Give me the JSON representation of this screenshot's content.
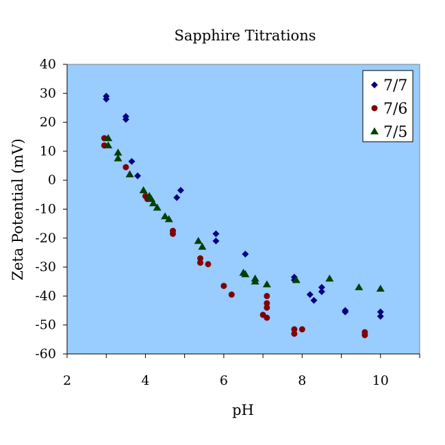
{
  "chart_data": {
    "type": "scatter",
    "title": "Sapphire Titrations",
    "xlabel": "pH",
    "ylabel": "Zeta Potential (mV)",
    "xlim": [
      2,
      11
    ],
    "ylim": [
      -60,
      40
    ],
    "xticks": [
      2,
      4,
      6,
      8,
      10
    ],
    "yticks": [
      40,
      30,
      20,
      10,
      0,
      -10,
      -20,
      -30,
      -40,
      -50,
      -60
    ],
    "grid": false,
    "legend_position": "top-right",
    "plot_background": "#99ccff",
    "series": [
      {
        "name": "7/7",
        "marker": "diamond",
        "color": "#000080",
        "points": [
          [
            3.0,
            29
          ],
          [
            3.0,
            28
          ],
          [
            3.5,
            22
          ],
          [
            3.5,
            21
          ],
          [
            3.65,
            6.5
          ],
          [
            3.8,
            1.5
          ],
          [
            4.8,
            -6
          ],
          [
            4.9,
            -3.5
          ],
          [
            5.8,
            -18.5
          ],
          [
            5.8,
            -21
          ],
          [
            6.55,
            -25.5
          ],
          [
            7.8,
            -33.5
          ],
          [
            7.8,
            -34.5
          ],
          [
            8.2,
            -39.5
          ],
          [
            8.3,
            -41.5
          ],
          [
            8.5,
            -37
          ],
          [
            8.5,
            -38.5
          ],
          [
            9.1,
            -45
          ],
          [
            9.1,
            -45.5
          ],
          [
            10.0,
            -45.5
          ],
          [
            10.0,
            -47
          ]
        ]
      },
      {
        "name": "7/6",
        "marker": "circle",
        "color": "#800000",
        "points": [
          [
            2.95,
            14.5
          ],
          [
            2.95,
            12
          ],
          [
            3.5,
            4.5
          ],
          [
            4.0,
            -5.5
          ],
          [
            4.05,
            -6.5
          ],
          [
            4.7,
            -17.5
          ],
          [
            4.7,
            -18.5
          ],
          [
            5.4,
            -27
          ],
          [
            5.4,
            -28.5
          ],
          [
            5.6,
            -29
          ],
          [
            6.0,
            -36.5
          ],
          [
            6.2,
            -39.5
          ],
          [
            7.0,
            -46.5
          ],
          [
            7.1,
            -40
          ],
          [
            7.1,
            -42.5
          ],
          [
            7.1,
            -44
          ],
          [
            7.1,
            -47.5
          ],
          [
            7.8,
            -51.5
          ],
          [
            7.8,
            -53
          ],
          [
            8.0,
            -51.5
          ],
          [
            9.6,
            -52.5
          ],
          [
            9.6,
            -53.5
          ]
        ]
      },
      {
        "name": "7/5",
        "marker": "triangle",
        "color": "#004000",
        "points": [
          [
            3.05,
            14.5
          ],
          [
            3.05,
            12
          ],
          [
            3.3,
            9.5
          ],
          [
            3.3,
            7.5
          ],
          [
            3.6,
            2
          ],
          [
            3.95,
            -3.5
          ],
          [
            4.1,
            -5.5
          ],
          [
            4.15,
            -6.5
          ],
          [
            4.2,
            -8
          ],
          [
            4.3,
            -9.5
          ],
          [
            4.5,
            -12.5
          ],
          [
            4.6,
            -13.5
          ],
          [
            5.35,
            -21
          ],
          [
            5.45,
            -23
          ],
          [
            6.5,
            -32
          ],
          [
            6.55,
            -32.5
          ],
          [
            6.8,
            -34
          ],
          [
            6.8,
            -35
          ],
          [
            7.1,
            -36
          ],
          [
            7.85,
            -34.5
          ],
          [
            8.7,
            -34
          ],
          [
            9.45,
            -37
          ],
          [
            10.0,
            -37.5
          ]
        ]
      }
    ]
  }
}
